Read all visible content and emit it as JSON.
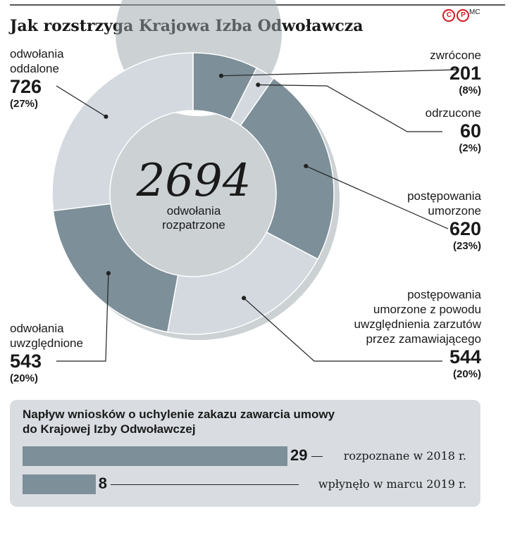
{
  "header": {
    "title": "Jak rozstrzyga Krajowa Izba Odwoławcza",
    "logo_text": "©P",
    "author": "MC"
  },
  "chart_data": [
    {
      "type": "pie",
      "variant": "donut",
      "total": {
        "value": "2694",
        "label": "odwołania\nrozpatrzone"
      },
      "slices": [
        {
          "name": "zwrócone",
          "value": 201,
          "percent": "(8%)",
          "color": "#7d8f98"
        },
        {
          "name": "odrzucone",
          "value": 60,
          "percent": "(2%)",
          "color": "#d3d9df"
        },
        {
          "name": "postępowania\numorzone",
          "value": 620,
          "percent": "(23%)",
          "color": "#7d8f98"
        },
        {
          "name": "postępowania\numorzone z powodu\nuwzględnienia zarzutów\nprzez zamawiającego",
          "value": 544,
          "percent": "(20%)",
          "color": "#d3d9df"
        },
        {
          "name": "odwołania\nuwzględnione",
          "value": 543,
          "percent": "(20%)",
          "color": "#7d8f98"
        },
        {
          "name": "odwołania\noddalone",
          "value": 726,
          "percent": "(27%)",
          "color": "#d3d9df"
        }
      ]
    },
    {
      "type": "bar",
      "orientation": "horizontal",
      "title": "Napływ wniosków o uchylenie zakazu zawarcia umowy\ndo Krajowej Izby Odwoławczej",
      "categories": [
        "rozpoznane w 2018 r.",
        "wpłynęło w marcu 2019 r."
      ],
      "values": [
        29,
        8
      ],
      "color": "#7d8f98"
    }
  ]
}
